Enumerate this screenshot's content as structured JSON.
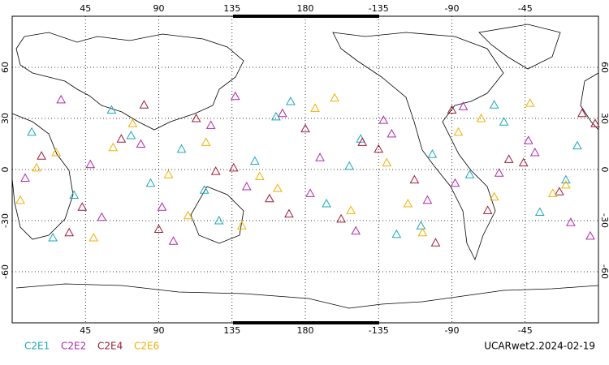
{
  "chart_data": {
    "type": "scatter",
    "footer": "UCARwet2.2024-02-19",
    "xlim": [
      0,
      360
    ],
    "xticks": [
      45,
      90,
      135,
      180,
      {
        "value": 225,
        "label": "-135"
      },
      {
        "value": 270,
        "label": "-90"
      },
      {
        "value": 315,
        "label": "-45"
      }
    ],
    "ylim": [
      -90,
      90
    ],
    "yticks": [
      60,
      30,
      0,
      -30,
      -60
    ],
    "grid": true,
    "series": [
      {
        "name": "C2E1",
        "color": "#1aa8b8",
        "x": [
          12,
          38,
          61,
          85,
          104,
          127,
          149,
          171,
          193,
          214,
          236,
          258,
          281,
          302,
          324,
          347,
          25,
          73,
          118,
          162,
          207,
          251,
          296,
          340
        ],
        "y": [
          22,
          -15,
          35,
          -8,
          12,
          -30,
          5,
          40,
          -20,
          18,
          -38,
          9,
          -3,
          28,
          -25,
          14,
          -40,
          20,
          -12,
          31,
          2,
          -33,
          38,
          -6
        ]
      },
      {
        "name": "C2E2",
        "color": "#b02aa8",
        "x": [
          8,
          30,
          55,
          79,
          99,
          122,
          144,
          166,
          189,
          211,
          233,
          255,
          277,
          299,
          321,
          343,
          48,
          92,
          137,
          183,
          228,
          272,
          317,
          355
        ],
        "y": [
          -5,
          41,
          -28,
          15,
          -42,
          26,
          -10,
          33,
          7,
          -36,
          21,
          -18,
          37,
          -2,
          10,
          -31,
          3,
          -22,
          43,
          -14,
          29,
          -8,
          17,
          -39
        ]
      },
      {
        "name": "C2E4",
        "color": "#a01c38",
        "x": [
          18,
          43,
          67,
          90,
          113,
          136,
          158,
          180,
          202,
          225,
          247,
          270,
          292,
          314,
          336,
          358,
          35,
          81,
          125,
          170,
          215,
          260,
          305,
          350
        ],
        "y": [
          8,
          -22,
          18,
          -35,
          30,
          1,
          -17,
          24,
          -29,
          12,
          -6,
          35,
          -24,
          4,
          -13,
          27,
          -37,
          38,
          -1,
          -26,
          16,
          -43,
          6,
          33
        ]
      },
      {
        "name": "C2E6",
        "color": "#f0b000",
        "x": [
          5,
          27,
          50,
          74,
          96,
          119,
          141,
          163,
          186,
          208,
          230,
          252,
          274,
          296,
          318,
          340,
          62,
          108,
          152,
          198,
          243,
          288,
          332,
          15
        ],
        "y": [
          -18,
          10,
          -40,
          27,
          -3,
          16,
          -33,
          -11,
          36,
          -24,
          4,
          -37,
          22,
          -16,
          39,
          -9,
          13,
          -27,
          -4,
          42,
          -20,
          30,
          -14,
          1
        ]
      }
    ]
  }
}
